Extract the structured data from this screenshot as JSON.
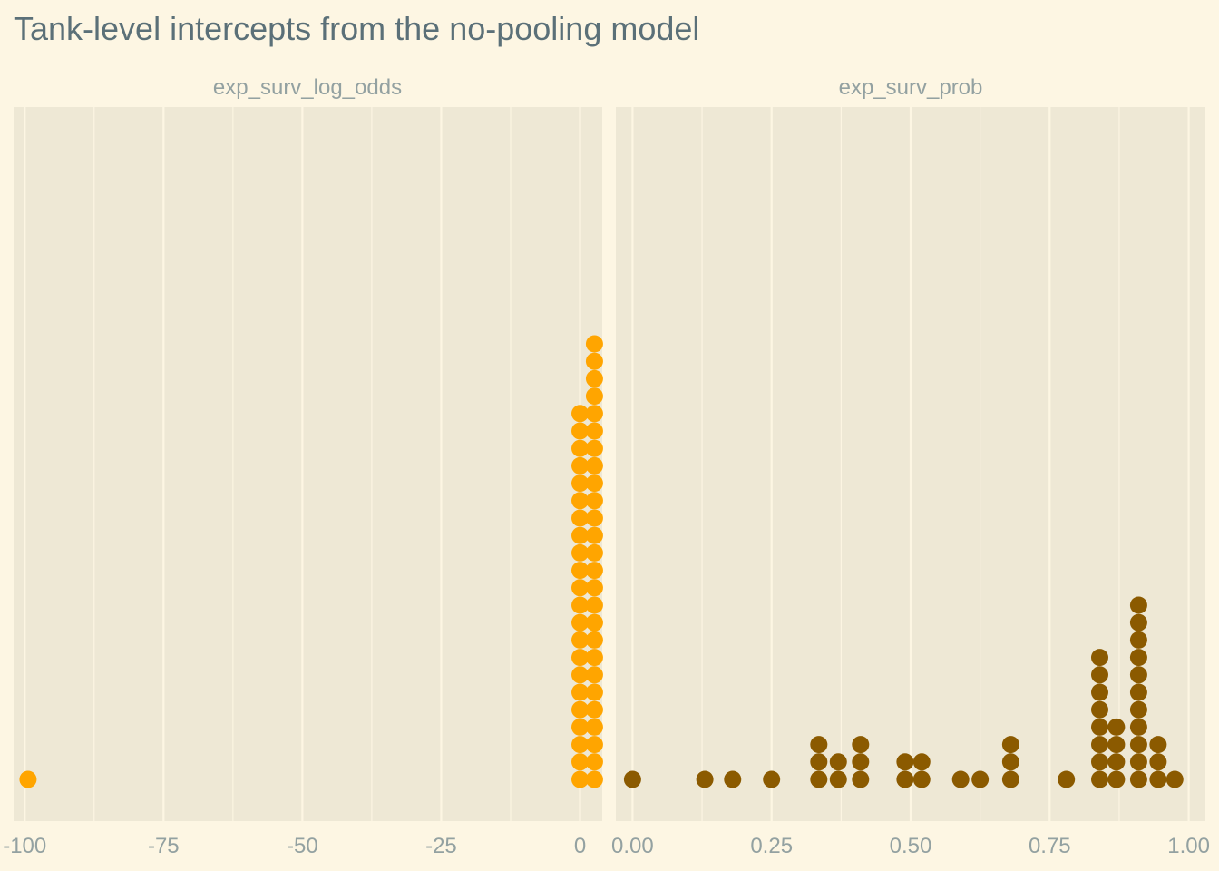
{
  "title": "Tank-level intercepts from the no-pooling model",
  "colors": {
    "background": "#fdf6e3",
    "panel": "#eee8d5",
    "grid": "#fdf6e3",
    "title": "#5b7078",
    "text": "#93a1a1",
    "log_odds_dots": "#ffa500",
    "prob_dots": "#8b5a00"
  },
  "chart_data": [
    {
      "type": "scatter",
      "subtype": "dotplot",
      "facet_label": "exp_surv_log_odds",
      "xlim": [
        -102,
        4
      ],
      "x_ticks": [
        -100,
        -75,
        -50,
        -25,
        0
      ],
      "x_tick_labels": [
        "-100",
        "-75",
        "-50",
        "-25",
        "0"
      ],
      "grid": true,
      "dot_color": "#ffa500",
      "bins": [
        {
          "x": -99.4,
          "count": 1
        },
        {
          "x": 0.0,
          "count": 22
        },
        {
          "x": 2.6,
          "count": 26
        }
      ]
    },
    {
      "type": "scatter",
      "subtype": "dotplot",
      "facet_label": "exp_surv_prob",
      "xlim": [
        -0.03,
        1.03
      ],
      "x_ticks": [
        0,
        0.25,
        0.5,
        0.75,
        1.0
      ],
      "x_tick_labels": [
        "0.00",
        "0.25",
        "0.50",
        "0.75",
        "1.00"
      ],
      "grid": true,
      "dot_color": "#8b5a00",
      "bins": [
        {
          "x": 0.0,
          "count": 1
        },
        {
          "x": 0.13,
          "count": 1
        },
        {
          "x": 0.18,
          "count": 1
        },
        {
          "x": 0.25,
          "count": 1
        },
        {
          "x": 0.335,
          "count": 3
        },
        {
          "x": 0.37,
          "count": 2
        },
        {
          "x": 0.41,
          "count": 3
        },
        {
          "x": 0.49,
          "count": 2
        },
        {
          "x": 0.52,
          "count": 2
        },
        {
          "x": 0.59,
          "count": 1
        },
        {
          "x": 0.625,
          "count": 1
        },
        {
          "x": 0.68,
          "count": 3
        },
        {
          "x": 0.78,
          "count": 1
        },
        {
          "x": 0.84,
          "count": 8
        },
        {
          "x": 0.87,
          "count": 4
        },
        {
          "x": 0.91,
          "count": 11
        },
        {
          "x": 0.945,
          "count": 3
        },
        {
          "x": 0.975,
          "count": 1
        }
      ]
    }
  ]
}
